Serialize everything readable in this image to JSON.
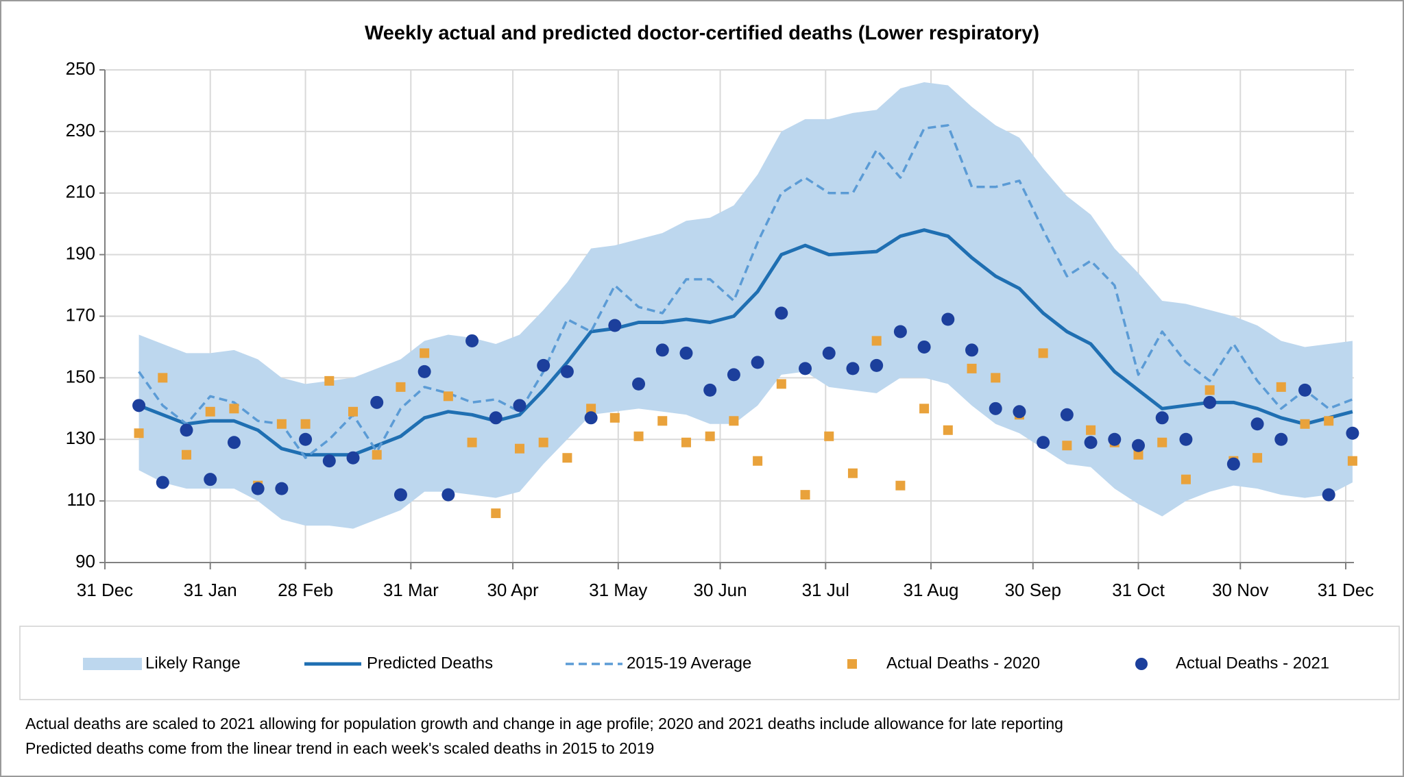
{
  "chart_data": {
    "type": "line",
    "title": "Weekly actual and predicted doctor-certified deaths (Lower respiratory)",
    "x": [
      10,
      17,
      24,
      31,
      38,
      45,
      52,
      59,
      66,
      73,
      80,
      87,
      94,
      101,
      108,
      115,
      122,
      129,
      136,
      143,
      150,
      157,
      164,
      171,
      178,
      185,
      192,
      199,
      206,
      213,
      220,
      227,
      234,
      241,
      248,
      255,
      262,
      269,
      276,
      283,
      290,
      297,
      304,
      311,
      318,
      325,
      332,
      339,
      346,
      353,
      360,
      367
    ],
    "xlim": [
      0,
      365
    ],
    "xticks": [
      {
        "value": 0,
        "label": "31 Dec"
      },
      {
        "value": 31,
        "label": "31 Jan"
      },
      {
        "value": 59,
        "label": "28 Feb"
      },
      {
        "value": 90,
        "label": "31 Mar"
      },
      {
        "value": 120,
        "label": "30 Apr"
      },
      {
        "value": 151,
        "label": "31 May"
      },
      {
        "value": 181,
        "label": "30 Jun"
      },
      {
        "value": 212,
        "label": "31 Jul"
      },
      {
        "value": 243,
        "label": "31 Aug"
      },
      {
        "value": 273,
        "label": "30 Sep"
      },
      {
        "value": 304,
        "label": "31 Oct"
      },
      {
        "value": 334,
        "label": "30 Nov"
      },
      {
        "value": 365,
        "label": "31 Dec"
      }
    ],
    "ylim": [
      90,
      250
    ],
    "yticks": [
      90,
      110,
      130,
      150,
      170,
      190,
      210,
      230,
      250
    ],
    "grid": true,
    "series": [
      {
        "name": "Likely Range",
        "kind": "band",
        "color": "#bdd7ee",
        "low": [
          120,
          116,
          114,
          114,
          114,
          110,
          104,
          102,
          102,
          101,
          104,
          107,
          113,
          113,
          112,
          111,
          113,
          122,
          130,
          138,
          139,
          140,
          139,
          138,
          135,
          135,
          141,
          151,
          152,
          147,
          146,
          145,
          150,
          150,
          148,
          141,
          135,
          132,
          127,
          122,
          121,
          114,
          109,
          105,
          110,
          113,
          115,
          114,
          112,
          111,
          112,
          116
        ],
        "high": [
          164,
          161,
          158,
          158,
          159,
          156,
          150,
          148,
          149,
          150,
          153,
          156,
          162,
          164,
          163,
          161,
          164,
          172,
          181,
          192,
          193,
          195,
          197,
          201,
          202,
          206,
          216,
          230,
          234,
          234,
          236,
          237,
          244,
          246,
          245,
          238,
          232,
          228,
          218,
          209,
          203,
          192,
          184,
          175,
          174,
          172,
          170,
          167,
          162,
          160,
          161,
          162
        ]
      },
      {
        "name": "Predicted Deaths",
        "kind": "solid",
        "color": "#1f6fb2",
        "values": [
          141,
          138,
          135,
          136,
          136,
          133,
          127,
          125,
          125,
          125,
          128,
          131,
          137,
          139,
          138,
          136,
          138,
          146,
          155,
          165,
          166,
          168,
          168,
          169,
          168,
          170,
          178,
          190,
          193,
          190,
          190.5,
          191,
          196,
          198,
          196,
          189,
          183,
          179,
          171,
          165,
          161,
          152,
          146,
          140,
          141,
          142,
          142,
          140,
          137,
          135,
          137,
          139
        ]
      },
      {
        "name": "2015-19 Average",
        "kind": "dashed",
        "color": "#5b9bd5",
        "values": [
          152,
          141,
          135,
          144,
          142,
          136,
          135,
          124,
          130,
          138,
          126,
          140,
          147,
          145,
          142,
          143,
          139,
          152,
          169,
          165,
          180,
          173,
          171,
          182,
          182,
          175,
          194,
          210,
          215,
          210,
          210,
          224,
          215,
          231,
          232,
          212,
          212,
          214,
          198,
          183,
          188,
          180,
          151,
          165,
          155,
          149,
          161,
          149,
          140,
          146,
          140,
          143
        ]
      },
      {
        "name": "Actual Deaths - 2020",
        "kind": "square",
        "color": "#e9a23b",
        "values": [
          132,
          150,
          125,
          139,
          140,
          115,
          135,
          135,
          149,
          139,
          125,
          147,
          158,
          144,
          129,
          106,
          127,
          129,
          124,
          140,
          137,
          131,
          136,
          129,
          131,
          136,
          123,
          148,
          112,
          131,
          119,
          162,
          115,
          140,
          133,
          153,
          150,
          138,
          158,
          128,
          133,
          129,
          125,
          129,
          117,
          146,
          123,
          124,
          147,
          135,
          136,
          123
        ]
      },
      {
        "name": "Actual Deaths - 2021",
        "kind": "circle",
        "color": "#1c3f9c",
        "values": [
          141,
          116,
          133,
          117,
          129,
          114,
          114,
          130,
          123,
          124,
          142,
          112,
          152,
          112,
          162,
          137,
          141,
          154,
          152,
          137,
          167,
          148,
          159,
          158,
          146,
          151,
          155,
          171,
          153,
          158,
          153,
          154,
          165,
          160,
          169,
          159,
          140,
          139,
          129,
          138,
          129,
          130,
          128,
          137,
          130,
          142,
          122,
          135,
          130,
          146,
          112,
          132
        ]
      }
    ],
    "notes": [
      "Actual deaths are scaled to 2021 allowing for population growth and change in age profile; 2020 and 2021 deaths include allowance for late reporting",
      "Predicted deaths come from the linear trend in each week's scaled deaths in 2015 to 2019"
    ]
  }
}
